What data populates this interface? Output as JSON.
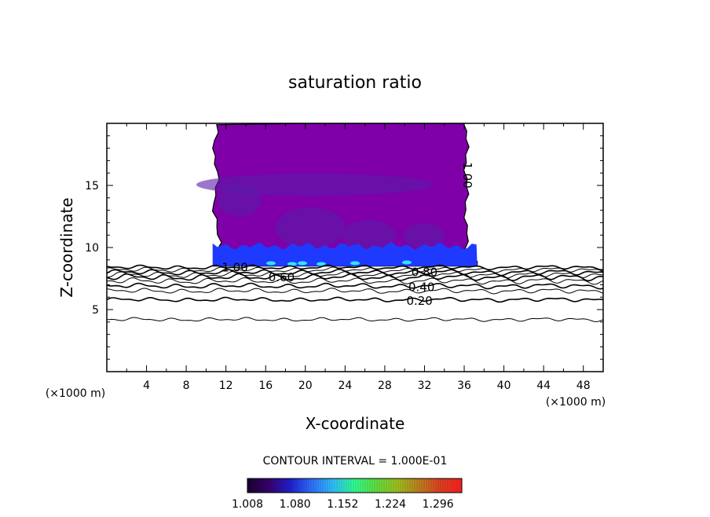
{
  "chart_data": {
    "type": "contour",
    "title": "saturation ratio",
    "xlabel": "X-coordinate",
    "ylabel": "Z-coordinate",
    "x_unit_left": "(×1000 m)",
    "x_unit_right": "(×1000 m)",
    "xlim": [
      0,
      50
    ],
    "ylim": [
      0,
      20
    ],
    "xticks": [
      4,
      8,
      12,
      16,
      20,
      24,
      28,
      32,
      36,
      40,
      44,
      48
    ],
    "yticks": [
      5,
      10,
      15
    ],
    "contour_interval_text": "CONTOUR INTERVAL = 1.000E-01",
    "contour_lines": [
      {
        "label": "0.20",
        "z": 5.8,
        "amp": 0.1
      },
      {
        "label": "",
        "z": 6.5,
        "amp": 0.12
      },
      {
        "label": "0.40",
        "z": 6.9,
        "amp": 0.12
      },
      {
        "label": "",
        "z": 7.3,
        "amp": 0.14
      },
      {
        "label": "0.60",
        "z": 7.6,
        "amp": 0.15
      },
      {
        "label": "",
        "z": 7.8,
        "amp": 0.14
      },
      {
        "label": "0.80",
        "z": 8.0,
        "amp": 0.13
      },
      {
        "label": "",
        "z": 8.2,
        "amp": 0.12
      },
      {
        "label": "1.00",
        "z": 8.4,
        "amp": 0.1
      },
      {
        "label": "",
        "z": 4.2,
        "amp": 0.09
      }
    ],
    "filled_region": {
      "x_range": [
        10.5,
        37.0
      ],
      "z_range": [
        8.5,
        20.0
      ],
      "dominant_value": 1.008,
      "enhanced_band_z": [
        8.5,
        10.5
      ]
    },
    "colorbar": {
      "min": 1.008,
      "max": 1.332,
      "tick_labels": [
        "1.008",
        "1.080",
        "1.152",
        "1.224",
        "1.296"
      ],
      "colors": [
        "#1a0030",
        "#3a0070",
        "#2020d0",
        "#3070ff",
        "#30c0ff",
        "#30ff90",
        "#60e040",
        "#a0c020",
        "#c08020",
        "#e04020",
        "#ff2020"
      ]
    },
    "colors": {
      "fill_purple": "#7f00a8",
      "fill_deep_purple": "#5a1aa8",
      "fill_blue": "#1f3aff",
      "fill_cyan": "#31e2ff",
      "line": "#000000"
    }
  }
}
